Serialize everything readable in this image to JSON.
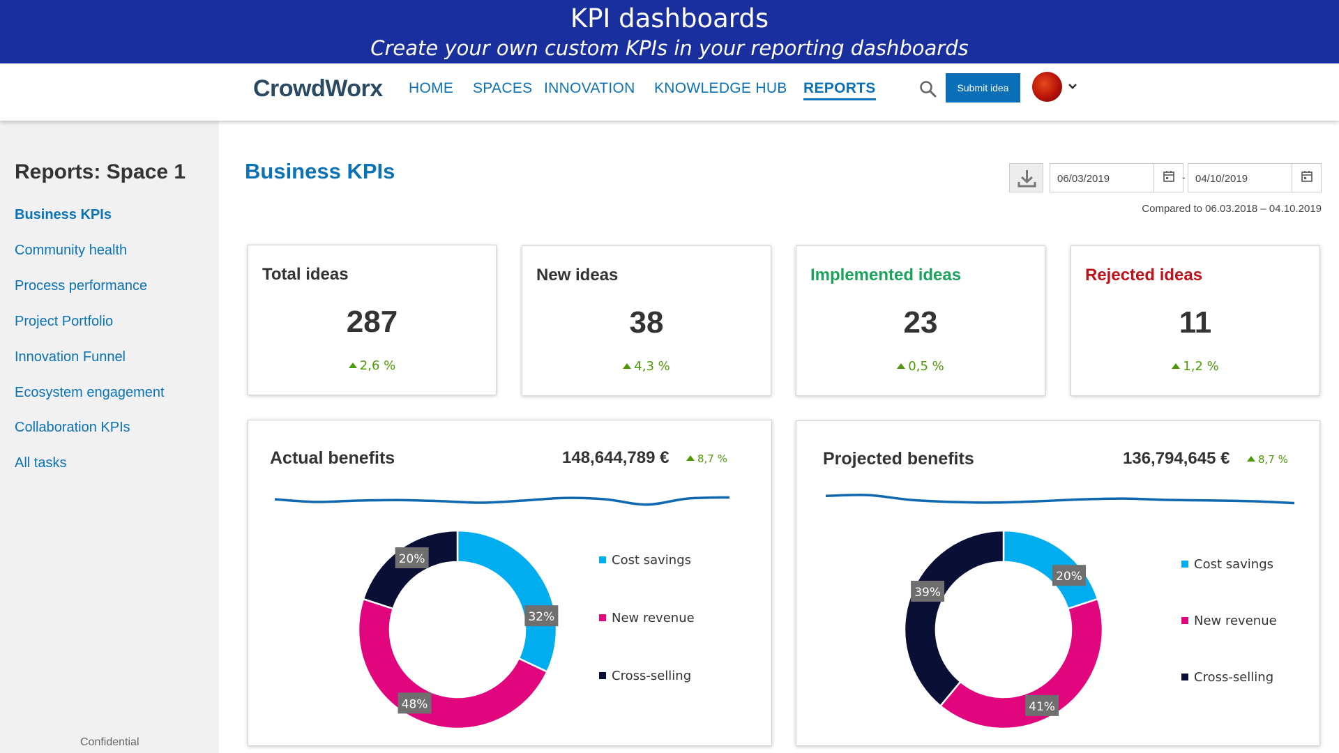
{
  "banner": {
    "title": "KPI dashboards",
    "subtitle": "Create your own custom KPIs in your reporting dashboards"
  },
  "nav": {
    "logo": "CrowdWorx",
    "items": [
      "HOME",
      "SPACES",
      "INNOVATION",
      "KNOWLEDGE HUB",
      "REPORTS"
    ],
    "active": "REPORTS",
    "submit_label": "Submit idea",
    "search_icon": "search-icon",
    "user_icon": "avatar"
  },
  "sidebar": {
    "title": "Reports: Space 1",
    "items": [
      "Business KPIs",
      "Community health",
      "Process performance",
      "Project Portfolio",
      "Innovation Funnel",
      "Ecosystem engagement",
      "Collaboration KPIs",
      "All tasks"
    ],
    "active": "Business KPIs",
    "footer": "Confidential"
  },
  "main": {
    "title": "Business KPIs",
    "date_from": "06/03/2019",
    "date_sep": "-",
    "date_to": "04/10/2019",
    "compared": "Compared to 06.03.2018 – 04.10.2019"
  },
  "kpis": [
    {
      "label": "Total ideas",
      "value": "287",
      "delta": "2,6 %",
      "color": "#333333"
    },
    {
      "label": "New ideas",
      "value": "38",
      "delta": "4,3 %",
      "color": "#333333"
    },
    {
      "label": "Implemented ideas",
      "value": "23",
      "delta": "0,5 %",
      "color": "#1aa35a"
    },
    {
      "label": "Rejected ideas",
      "value": "11",
      "delta": "1,2 %",
      "color": "#c0101a"
    }
  ],
  "colors": {
    "accent": "#0b72b5",
    "banner": "#1a2f9e",
    "cost_savings": "#00aeef",
    "new_revenue": "#e2067e",
    "cross_selling": "#0a0f35",
    "positive": "#4e9a06"
  },
  "chart_data": [
    {
      "type": "pie",
      "title": "Actual benefits",
      "total": "148,644,789 €",
      "delta": "8,7 %",
      "categories": [
        "Cost savings",
        "New revenue",
        "Cross-selling"
      ],
      "values": [
        32,
        48,
        20
      ],
      "labels": [
        "32%",
        "48%",
        "20%"
      ],
      "sparkline": [
        0.55,
        0.45,
        0.5,
        0.52,
        0.48,
        0.42,
        0.5,
        0.6,
        0.55,
        0.35,
        0.58,
        0.62
      ]
    },
    {
      "type": "pie",
      "title": "Projected benefits",
      "total": "136,794,645 €",
      "delta": "8,7 %",
      "categories": [
        "Cost savings",
        "New revenue",
        "Cross-selling"
      ],
      "values": [
        20,
        41,
        39
      ],
      "labels": [
        "20%",
        "41%",
        "39%"
      ],
      "sparkline": [
        0.65,
        0.68,
        0.5,
        0.42,
        0.4,
        0.45,
        0.52,
        0.55,
        0.5,
        0.48,
        0.45,
        0.38
      ]
    }
  ]
}
